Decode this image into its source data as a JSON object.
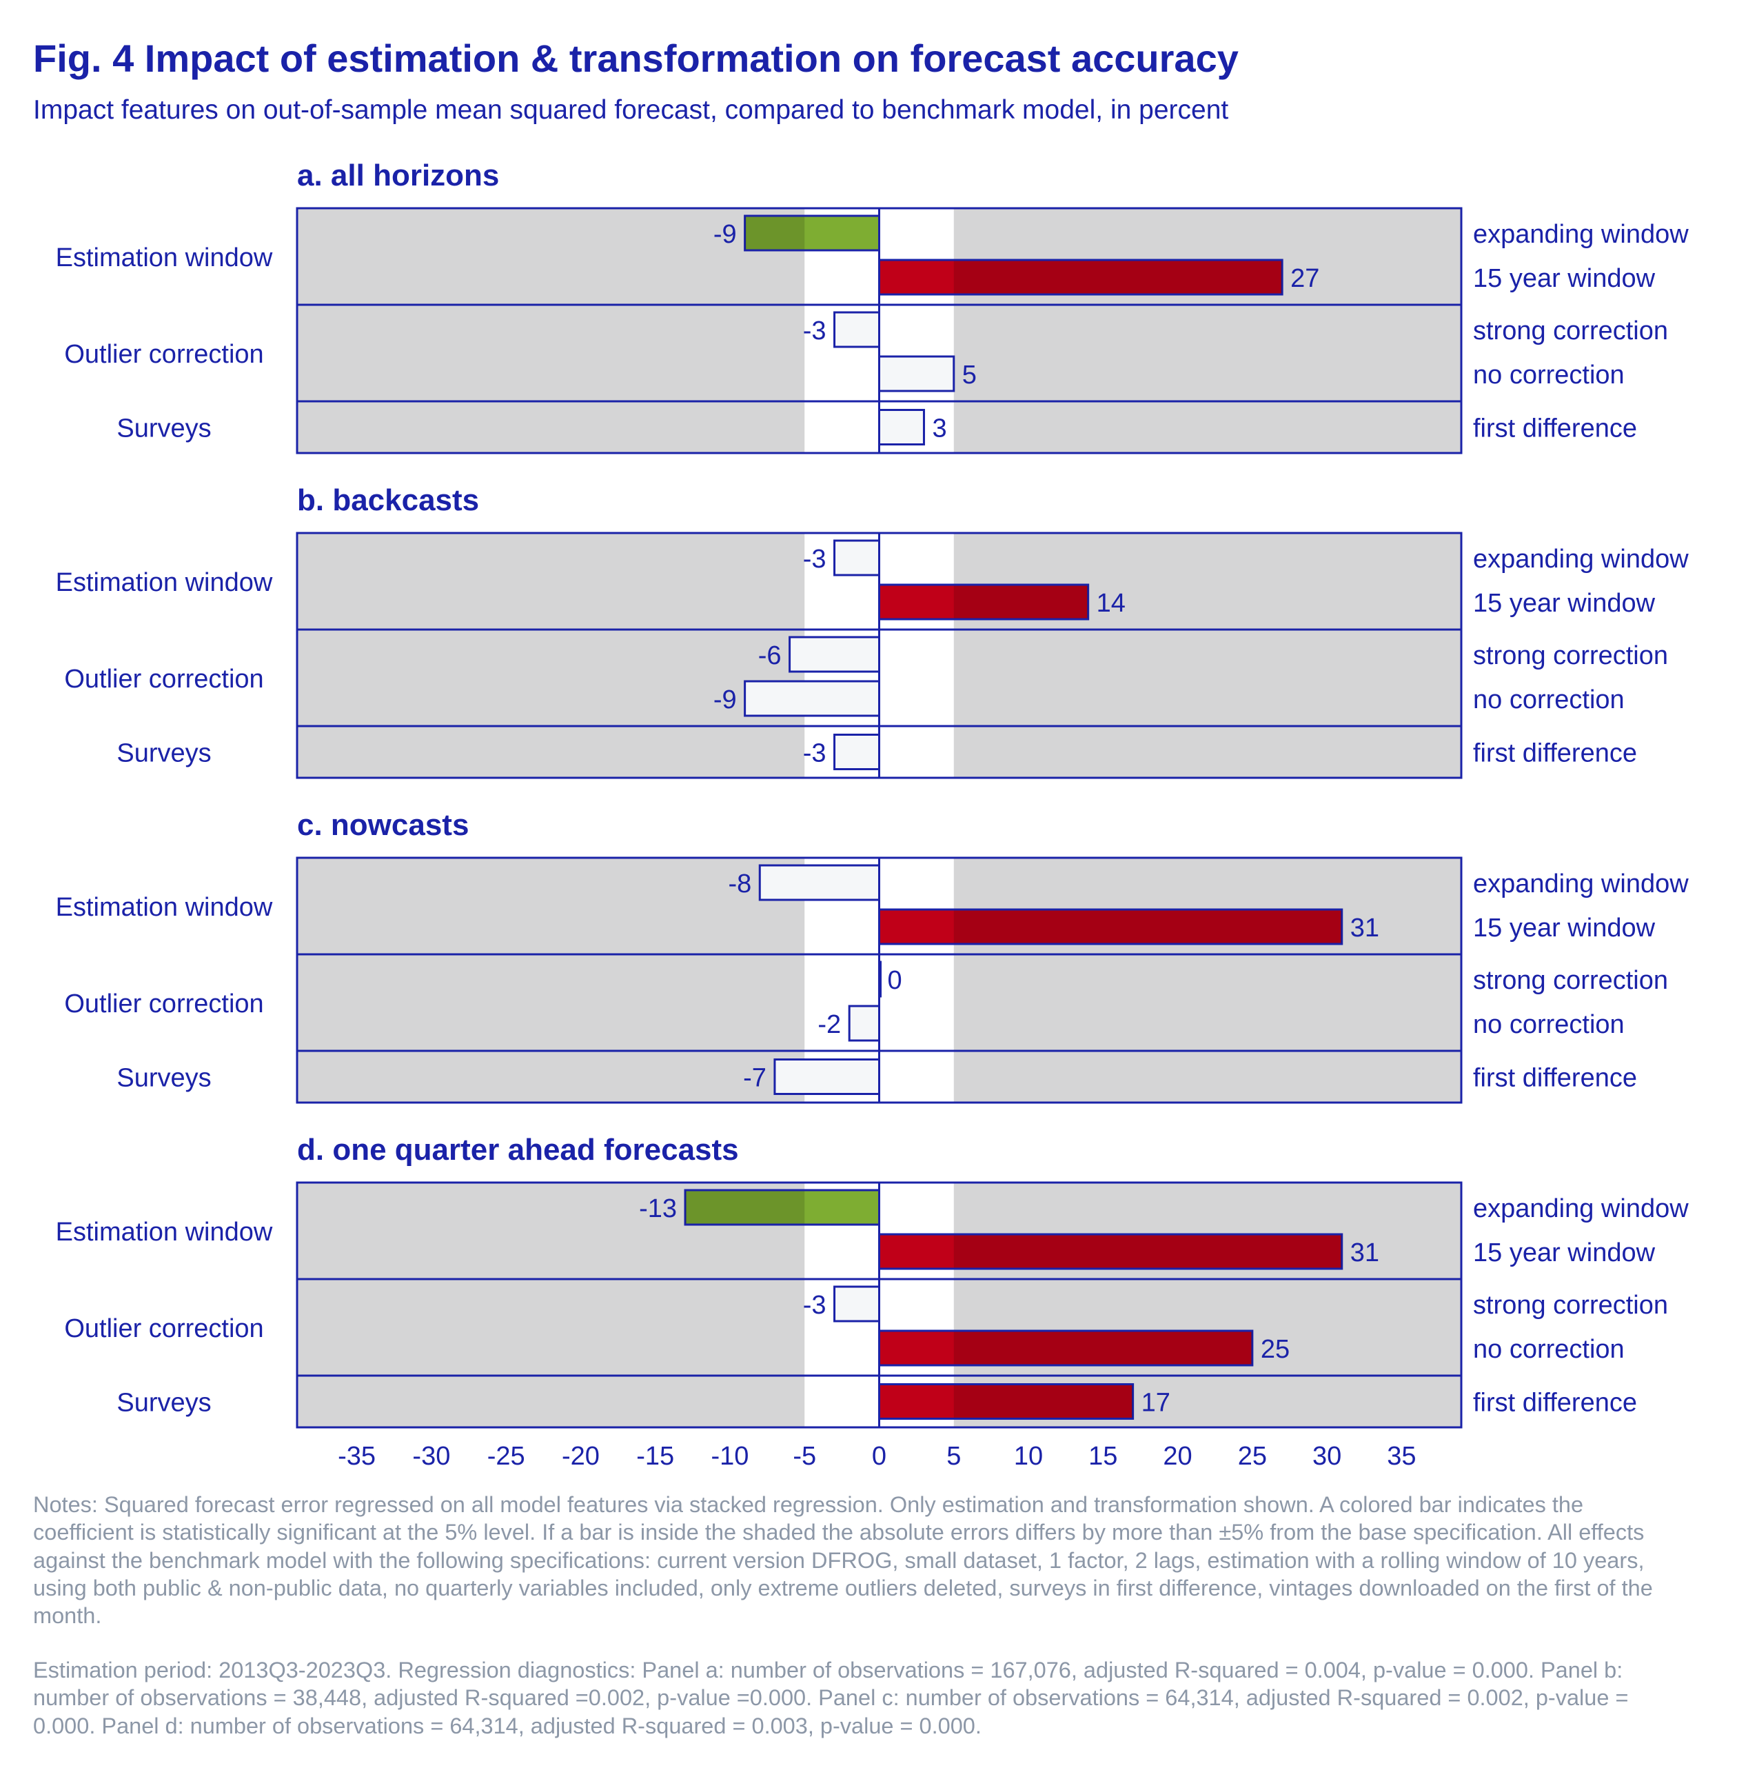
{
  "figure": {
    "title": "Fig. 4 Impact of estimation & transformation on forecast accuracy",
    "subtitle": "Impact features on out-of-sample mean squared forecast, compared to benchmark model, in percent"
  },
  "colors": {
    "text": "#1a22a8",
    "frame": "#1a22a8",
    "panel_bg": "#d5d5d6",
    "band_bg": "#ffffff",
    "negative_significant": "#7ead32",
    "positive_significant": "#c00018",
    "not_significant": "#f5f7f9",
    "notes": "#8c97a7"
  },
  "chart_data": {
    "type": "bar",
    "orientation": "horizontal",
    "xlim": [
      -39,
      39
    ],
    "x_ticks": [
      -35,
      -30,
      -25,
      -20,
      -15,
      -10,
      -5,
      0,
      5,
      10,
      15,
      20,
      25,
      30,
      35
    ],
    "shaded_band": [
      -5,
      5
    ],
    "grid": false,
    "groups": [
      {
        "label": "Estimation window",
        "items": [
          "expanding window",
          "15 year window"
        ]
      },
      {
        "label": "Outlier correction",
        "items": [
          "strong correction",
          "no correction"
        ]
      },
      {
        "label": "Surveys",
        "items": [
          "first difference"
        ]
      }
    ],
    "panels": [
      {
        "title": "a. all horizons",
        "values": [
          -9,
          27,
          -3,
          5,
          3
        ],
        "significant": [
          true,
          true,
          false,
          false,
          false
        ]
      },
      {
        "title": "b. backcasts",
        "values": [
          -3,
          14,
          -6,
          -9,
          -3
        ],
        "significant": [
          false,
          true,
          false,
          false,
          false
        ]
      },
      {
        "title": "c. nowcasts",
        "values": [
          -8,
          31,
          0,
          -2,
          -7
        ],
        "significant": [
          false,
          true,
          false,
          false,
          false
        ]
      },
      {
        "title": "d. one quarter ahead forecasts",
        "values": [
          -13,
          31,
          -3,
          25,
          17
        ],
        "significant": [
          true,
          true,
          false,
          true,
          true
        ]
      }
    ]
  },
  "notes": "Notes: Squared forecast error regressed on all model features via stacked regression. Only estimation and transformation shown. A colored bar indicates the coefficient is statistically significant at the 5% level. If a bar is inside the shaded the absolute errors differs by more than ±5% from the base specification. All effects against the benchmark model with the following specifications: current version DFROG, small dataset, 1 factor, 2 lags, estimation with a rolling window of 10 years, using both public & non-public data, no quarterly variables included, only extreme outliers deleted, surveys in first difference, vintages downloaded on the first of the month.",
  "diagnostics": "Estimation period: 2013Q3-2023Q3. Regression diagnostics: Panel a: number of observations = 167,076, adjusted R-squared = 0.004, p-value = 0.000. Panel b: number of observations = 38,448, adjusted R-squared =0.002, p-value =0.000. Panel c: number of observations = 64,314, adjusted R-squared = 0.002, p-value = 0.000. Panel d: number of observations = 64,314, adjusted R-squared = 0.003, p-value = 0.000."
}
